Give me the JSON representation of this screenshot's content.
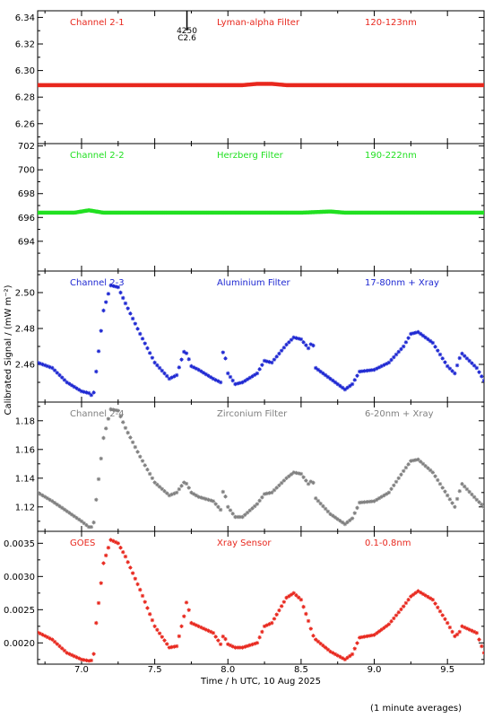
{
  "figure": {
    "ylabel": "Calibrated Signal / (mW m⁻²)",
    "xlabel": "Time / h UTC, 10 Aug 2025",
    "footnote": "(1 minute averages)",
    "marker": {
      "time_label": "4250",
      "class_label": "C2.6",
      "x": 7.72
    }
  },
  "chart_data": [
    {
      "type": "scatter",
      "panel_label": "Channel 2-1",
      "filter": "Lyman-alpha Filter",
      "band": "120-123nm",
      "color": "#e8281e",
      "xlim": [
        6.7,
        9.75
      ],
      "ylim": [
        6.245,
        6.345
      ],
      "yticks": [
        6.26,
        6.28,
        6.3,
        6.32,
        6.34
      ],
      "ytick_labels": [
        "6.26",
        "6.28",
        "6.30",
        "6.32",
        "6.34"
      ],
      "series": [
        {
          "x": [
            6.7,
            8.1,
            8.2,
            8.3,
            8.4,
            9.75
          ],
          "y": [
            6.289,
            6.289,
            6.29,
            6.29,
            6.289,
            6.289
          ]
        }
      ]
    },
    {
      "type": "scatter",
      "panel_label": "Channel 2-2",
      "filter": "Herzberg Filter",
      "band": "190-222nm",
      "color": "#22e022",
      "xlim": [
        6.7,
        9.75
      ],
      "ylim": [
        691.5,
        702.2
      ],
      "yticks": [
        694,
        696,
        698,
        700,
        702
      ],
      "ytick_labels": [
        "694",
        "696",
        "698",
        "700",
        "702"
      ],
      "series": [
        {
          "x": [
            6.7,
            6.95,
            7.05,
            7.15,
            8.5,
            8.7,
            8.8,
            9.75
          ],
          "y": [
            696.4,
            696.4,
            696.6,
            696.4,
            696.4,
            696.5,
            696.4,
            696.4
          ]
        }
      ]
    },
    {
      "type": "scatter",
      "panel_label": "Channel 2-3",
      "filter": "Aluminium Filter",
      "band": "17-80nm + Xray",
      "color": "#1e28d2",
      "xlim": [
        6.7,
        9.75
      ],
      "ylim": [
        2.439,
        2.512
      ],
      "yticks": [
        2.46,
        2.48,
        2.5
      ],
      "ytick_labels": [
        "2.46",
        "2.48",
        "2.50"
      ],
      "series": [
        {
          "x": [
            6.7,
            6.8,
            6.9,
            7.0,
            7.05,
            7.08,
            7.1,
            7.15,
            7.2,
            7.25,
            7.3,
            7.4,
            7.5,
            7.6,
            7.65,
            7.7,
            7.72,
            7.75,
            7.8,
            7.9,
            7.95,
            7.97,
            8.0,
            8.05,
            8.1,
            8.2,
            8.25,
            8.3,
            8.4,
            8.45,
            8.5,
            8.55,
            8.58,
            8.6,
            8.7,
            8.8,
            8.85,
            8.9,
            9.0,
            9.1,
            9.2,
            9.25,
            9.3,
            9.4,
            9.5,
            9.55,
            9.58,
            9.6,
            9.7,
            9.75
          ],
          "y": [
            2.461,
            2.458,
            2.45,
            2.445,
            2.444,
            2.442,
            2.456,
            2.49,
            2.504,
            2.503,
            2.494,
            2.477,
            2.461,
            2.452,
            2.454,
            2.467,
            2.466,
            2.459,
            2.457,
            2.452,
            2.45,
            2.47,
            2.455,
            2.449,
            2.45,
            2.455,
            2.462,
            2.461,
            2.471,
            2.475,
            2.474,
            2.469,
            2.473,
            2.458,
            2.452,
            2.446,
            2.449,
            2.456,
            2.457,
            2.461,
            2.47,
            2.477,
            2.478,
            2.472,
            2.459,
            2.455,
            2.463,
            2.466,
            2.458,
            2.451
          ]
        }
      ]
    },
    {
      "type": "scatter",
      "panel_label": "Channel 2-4",
      "filter": "Zirconium Filter",
      "band": "6-20nm + Xray",
      "color": "#808080",
      "xlim": [
        6.7,
        9.75
      ],
      "ylim": [
        1.103,
        1.193
      ],
      "yticks": [
        1.12,
        1.14,
        1.16,
        1.18
      ],
      "ytick_labels": [
        "1.12",
        "1.14",
        "1.16",
        "1.18"
      ],
      "series": [
        {
          "x": [
            6.7,
            6.8,
            6.9,
            7.0,
            7.05,
            7.08,
            7.1,
            7.15,
            7.2,
            7.25,
            7.3,
            7.4,
            7.5,
            7.6,
            7.65,
            7.7,
            7.72,
            7.75,
            7.8,
            7.9,
            7.95,
            7.97,
            8.0,
            8.05,
            8.1,
            8.2,
            8.25,
            8.3,
            8.4,
            8.45,
            8.5,
            8.55,
            8.58,
            8.6,
            8.7,
            8.8,
            8.85,
            8.9,
            9.0,
            9.1,
            9.2,
            9.25,
            9.3,
            9.4,
            9.5,
            9.55,
            9.58,
            9.6,
            9.7,
            9.75
          ],
          "y": [
            1.13,
            1.124,
            1.117,
            1.11,
            1.106,
            1.106,
            1.125,
            1.168,
            1.188,
            1.187,
            1.175,
            1.155,
            1.137,
            1.128,
            1.13,
            1.137,
            1.136,
            1.13,
            1.127,
            1.124,
            1.118,
            1.133,
            1.12,
            1.113,
            1.113,
            1.122,
            1.129,
            1.13,
            1.14,
            1.144,
            1.143,
            1.136,
            1.139,
            1.126,
            1.115,
            1.108,
            1.112,
            1.123,
            1.124,
            1.13,
            1.145,
            1.152,
            1.153,
            1.144,
            1.128,
            1.12,
            1.13,
            1.136,
            1.125,
            1.12
          ]
        }
      ]
    },
    {
      "type": "scatter",
      "panel_label": "GOES",
      "filter": "Xray Sensor",
      "band": "0.1-0.8nm",
      "color": "#e8281e",
      "xlim": [
        6.7,
        9.75
      ],
      "ylim": [
        0.00168,
        0.00368
      ],
      "yticks": [
        0.002,
        0.0025,
        0.003,
        0.0035
      ],
      "ytick_labels": [
        "0.0020",
        "0.0025",
        "0.0030",
        "0.0035"
      ],
      "series": [
        {
          "x": [
            6.7,
            6.8,
            6.9,
            7.0,
            7.05,
            7.08,
            7.1,
            7.15,
            7.2,
            7.25,
            7.3,
            7.4,
            7.5,
            7.6,
            7.65,
            7.7,
            7.72,
            7.75,
            7.8,
            7.9,
            7.95,
            7.97,
            8.0,
            8.05,
            8.1,
            8.2,
            8.25,
            8.3,
            8.4,
            8.45,
            8.5,
            8.55,
            8.58,
            8.6,
            8.7,
            8.8,
            8.85,
            8.9,
            9.0,
            9.1,
            9.2,
            9.25,
            9.3,
            9.4,
            9.5,
            9.55,
            9.58,
            9.6,
            9.7,
            9.75
          ],
          "y": [
            0.00216,
            0.00205,
            0.00185,
            0.00175,
            0.00173,
            0.00174,
            0.0023,
            0.0032,
            0.00355,
            0.0035,
            0.0033,
            0.0028,
            0.00225,
            0.00193,
            0.00195,
            0.0024,
            0.00265,
            0.0023,
            0.00225,
            0.00215,
            0.00198,
            0.00212,
            0.00198,
            0.00193,
            0.00193,
            0.002,
            0.00225,
            0.0023,
            0.00268,
            0.00275,
            0.00265,
            0.00233,
            0.00212,
            0.00205,
            0.00187,
            0.00175,
            0.00183,
            0.00208,
            0.00212,
            0.00228,
            0.00255,
            0.0027,
            0.00278,
            0.00265,
            0.0023,
            0.0021,
            0.00215,
            0.00225,
            0.00215,
            0.00185
          ]
        }
      ]
    }
  ],
  "xaxis": {
    "ticks": [
      7.0,
      7.5,
      8.0,
      8.5,
      9.0,
      9.5
    ],
    "tick_labels": [
      "7.0",
      "7.5",
      "8.0",
      "8.5",
      "9.0",
      "9.5"
    ]
  }
}
